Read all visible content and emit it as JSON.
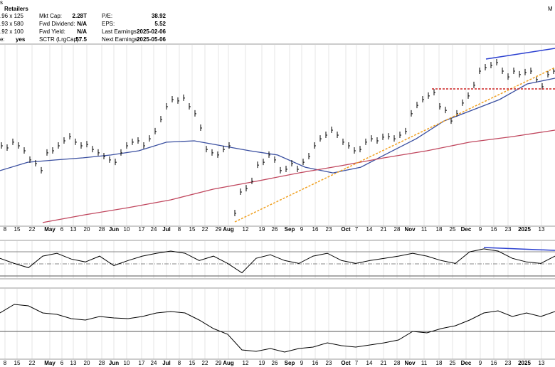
{
  "header": {
    "symbol_fragment": "s",
    "corner_fragment": "M",
    "industry": "Retailers",
    "rows": [
      {
        "left": [
          ".96 x 125"
        ],
        "fields": [
          [
            "Mkt Cap:",
            "2.28T"
          ],
          [
            "P/E:",
            "38.92"
          ]
        ]
      },
      {
        "left": [
          ".93 x 580"
        ],
        "fields": [
          [
            "Fwd Dividend:",
            "N/A"
          ],
          [
            "EPS:",
            "5.52"
          ]
        ]
      },
      {
        "left": [
          ".92 x 100"
        ],
        "fields": [
          [
            "Fwd Yield:",
            "N/A"
          ],
          [
            "Last Earnings:",
            "2025-02-06"
          ]
        ]
      },
      {
        "left": [
          "e:",
          "yes"
        ],
        "fields": [
          [
            "SCTR (LrgCap):",
            "57.5"
          ],
          [
            "Next Earnings:",
            "2025-05-06"
          ]
        ]
      }
    ]
  },
  "chart_data": [
    {
      "type": "ohlc",
      "color": "#000000",
      "ylim": [
        150,
        245
      ],
      "values": [
        192.1,
        191.0,
        194.0,
        192.1,
        189.5,
        184.7,
        182.8,
        179.1,
        188.4,
        189.5,
        192.1,
        194.7,
        196.9,
        194.0,
        192.1,
        192.8,
        190.2,
        188.4,
        186.5,
        184.7,
        183.5,
        188.4,
        192.1,
        194.0,
        194.7,
        192.1,
        195.8,
        199.6,
        205.9,
        212.6,
        216.3,
        215.6,
        217.1,
        212.6,
        208.9,
        201.4,
        190.2,
        188.4,
        187.3,
        190.2,
        192.1,
        156.7,
        167.9,
        169.7,
        173.5,
        182.0,
        183.5,
        187.3,
        184.7,
        179.1,
        179.8,
        182.8,
        179.8,
        183.5,
        186.5,
        192.1,
        195.8,
        197.7,
        200.3,
        197.7,
        194.0,
        192.1,
        189.5,
        190.2,
        194.0,
        195.8,
        194.7,
        196.6,
        196.9,
        195.8,
        197.7,
        199.6,
        208.9,
        213.3,
        216.3,
        218.2,
        220.0,
        212.6,
        210.7,
        205.1,
        208.9,
        214.5,
        218.2,
        223.8,
        231.2,
        233.1,
        234.2,
        235.7,
        231.2,
        228.2,
        231.2,
        229.4,
        230.5,
        231.2,
        226.8,
        223.0,
        229.4,
        231.2
      ],
      "overlays": [
        {
          "color": "#3a4fa0",
          "values": [
            179.1,
            183.5,
            184.7,
            185.8,
            187.3,
            189.5,
            194.0,
            194.7,
            192.1,
            189.5,
            187.3,
            180.9,
            177.9,
            180.9,
            188.4,
            195.8,
            205.1,
            210.7,
            216.3,
            224.5,
            227.5
          ]
        },
        {
          "color": "#c0475e",
          "values": [
            151.9,
            156.0,
            159.7,
            163.8,
            169.4,
            173.5,
            177.9,
            181.7,
            185.8,
            189.5,
            194.0,
            196.9,
            200.3
          ]
        }
      ],
      "x_labels": [
        "8",
        "15",
        "22",
        "May",
        "6",
        "13",
        "20",
        "28",
        "Jun",
        "10",
        "17",
        "24",
        "Jul",
        "8",
        "15",
        "22",
        "29",
        "Aug",
        "12",
        "19",
        "26",
        "Sep",
        "9",
        "16",
        "23",
        "Oct",
        "7",
        "14",
        "21",
        "28",
        "Nov",
        "11",
        "18",
        "25",
        "Dec",
        "9",
        "16",
        "23",
        "2025",
        "13"
      ]
    },
    {
      "type": "line",
      "color": "#000000",
      "ylim": [
        25,
        85
      ],
      "values": [
        57.1,
        48.8,
        41.8,
        60.6,
        65.3,
        55.9,
        51.2,
        60.6,
        45.3,
        53.5,
        60.6,
        65.3,
        68.8,
        65.3,
        53.5,
        60.6,
        48.8,
        33.5,
        57.1,
        62.9,
        53.5,
        48.8,
        60.6,
        65.3,
        53.5,
        48.8,
        53.5,
        57.1,
        60.6,
        65.3,
        60.6,
        53.5,
        48.8,
        67.6,
        72.4,
        68.8,
        57.1,
        51.2,
        48.8,
        60.6
      ]
    },
    {
      "type": "line",
      "color": "#000000",
      "ylim": [
        -40,
        55
      ],
      "values": [
        26,
        38,
        36,
        26,
        24,
        18,
        16,
        21,
        19,
        18,
        21,
        26,
        28,
        26,
        16,
        4,
        -4,
        -26,
        -28,
        -24,
        -29,
        -24,
        -22,
        -16,
        -20,
        -22,
        -19,
        -16,
        -12,
        0,
        -2,
        4,
        8,
        16,
        26,
        29,
        21,
        26,
        21,
        28
      ],
      "x_labels": [
        "8",
        "15",
        "22",
        "May",
        "6",
        "13",
        "20",
        "28",
        "Jun",
        "10",
        "17",
        "24",
        "Jul",
        "8",
        "15",
        "22",
        "29",
        "Aug",
        "12",
        "19",
        "26",
        "Sep",
        "9",
        "16",
        "23",
        "Oct",
        "7",
        "14",
        "21",
        "28",
        "Nov",
        "11",
        "18",
        "25",
        "Dec",
        "9",
        "16",
        "23",
        "2025",
        "13"
      ]
    }
  ]
}
